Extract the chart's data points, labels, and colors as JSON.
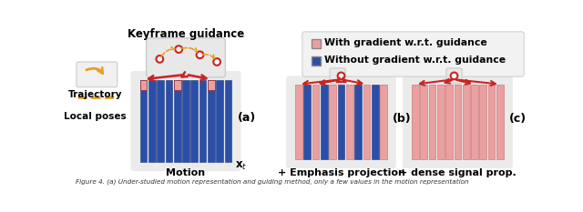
{
  "title": "Keyframe guidance",
  "legend_with": "With gradient w.r.t. guidance",
  "legend_without": "Without gradient w.r.t. guidance",
  "red_color": "#CC2222",
  "red_light": "#E8A0A0",
  "red_mid": "#D44040",
  "blue_color": "#2B4FA8",
  "blue_dark": "#1E3A7A",
  "panel_labels": [
    "(a)",
    "(b)",
    "(c)"
  ],
  "panel_titles": [
    "Motion",
    "+ Emphasis projection",
    "+ dense signal prop."
  ],
  "bg_color": "#F0F0F0",
  "panel_bg": "#EBEBEB",
  "traj_color": "#E8A020",
  "traj_label": "Trajectory",
  "pose_label": "Local poses",
  "caption": "Figure 4. (a) Under-studied motion representation and guiding method, only a few values in the motion representation",
  "fig_bg": "#FFFFFF"
}
